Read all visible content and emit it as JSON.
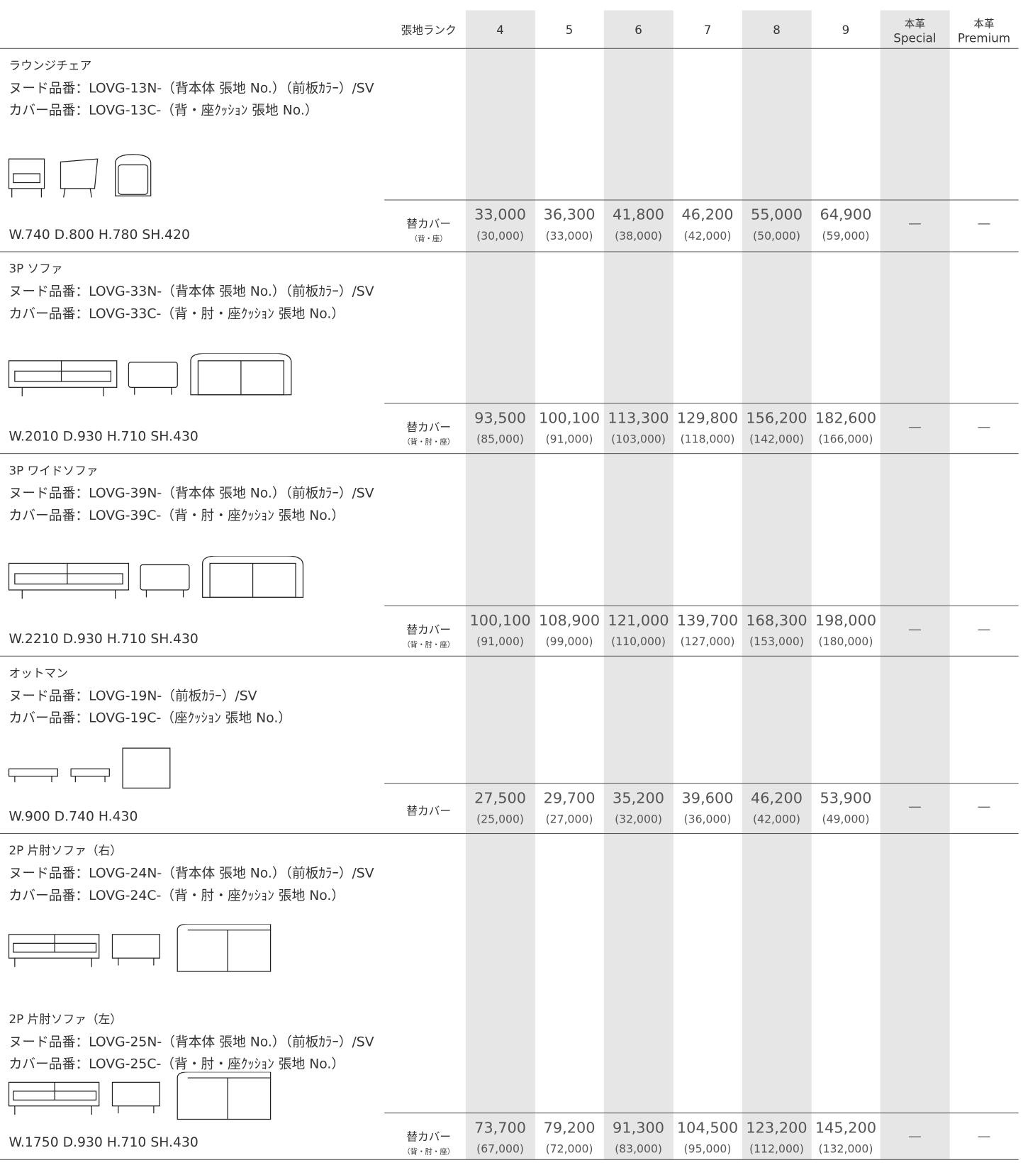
{
  "header": {
    "rank_label": "張地ランク",
    "columns": [
      [
        "4"
      ],
      [
        "5"
      ],
      [
        "6"
      ],
      [
        "7"
      ],
      [
        "8"
      ],
      [
        "9"
      ],
      [
        "本革",
        "Special"
      ],
      [
        "本革",
        "Premium"
      ]
    ]
  },
  "sections": [
    {
      "products": [
        {
          "name": "ラウンジチェア",
          "nude": "ヌード品番：LOVG-13N-（背本体 張地 No.）（前板ｶﾗｰ）/SV",
          "cover": "カバー品番：LOVG-13C-（背・座ｸｯｼｮﾝ 張地 No.）"
        }
      ],
      "dims": "W.740  D.800  H.780 SH.420",
      "cover_label": "替カバー",
      "cover_note": "（背・座）",
      "prices": [
        [
          "33,000",
          "(30,000)"
        ],
        [
          "36,300",
          "(33,000)"
        ],
        [
          "41,800",
          "(38,000)"
        ],
        [
          "46,200",
          "(42,000)"
        ],
        [
          "55,000",
          "(50,000)"
        ],
        [
          "64,900",
          "(59,000)"
        ]
      ],
      "leather": [
        "—",
        "—"
      ]
    },
    {
      "products": [
        {
          "name": "3P ソファ",
          "nude": "ヌード品番：LOVG-33N-（背本体 張地 No.）（前板ｶﾗｰ）/SV",
          "cover": "カバー品番：LOVG-33C-（背・肘・座ｸｯｼｮﾝ 張地 No.）"
        }
      ],
      "dims": "W.2010  D.930  H.710 SH.430",
      "cover_label": "替カバー",
      "cover_note": "（背・肘・座）",
      "prices": [
        [
          "93,500",
          "(85,000)"
        ],
        [
          "100,100",
          "(91,000)"
        ],
        [
          "113,300",
          "(103,000)"
        ],
        [
          "129,800",
          "(118,000)"
        ],
        [
          "156,200",
          "(142,000)"
        ],
        [
          "182,600",
          "(166,000)"
        ]
      ],
      "leather": [
        "—",
        "—"
      ]
    },
    {
      "products": [
        {
          "name": "3P ワイドソファ",
          "nude": "ヌード品番：LOVG-39N-（背本体 張地 No.）（前板ｶﾗｰ）/SV",
          "cover": "カバー品番：LOVG-39C-（背・肘・座ｸｯｼｮﾝ 張地 No.）"
        }
      ],
      "dims": "W.2210  D.930  H.710 SH.430",
      "cover_label": "替カバー",
      "cover_note": "（背・肘・座）",
      "prices": [
        [
          "100,100",
          "(91,000)"
        ],
        [
          "108,900",
          "(99,000)"
        ],
        [
          "121,000",
          "(110,000)"
        ],
        [
          "139,700",
          "(127,000)"
        ],
        [
          "168,300",
          "(153,000)"
        ],
        [
          "198,000",
          "(180,000)"
        ]
      ],
      "leather": [
        "—",
        "—"
      ]
    },
    {
      "products": [
        {
          "name": "オットマン",
          "nude": "ヌード品番：LOVG-19N-（前板ｶﾗｰ）/SV",
          "cover": "カバー品番：LOVG-19C-（座ｸｯｼｮﾝ 張地 No.）"
        }
      ],
      "dims": "W.900  D.740  H.430",
      "cover_label": "替カバー",
      "prices": [
        [
          "27,500",
          "(25,000)"
        ],
        [
          "29,700",
          "(27,000)"
        ],
        [
          "35,200",
          "(32,000)"
        ],
        [
          "39,600",
          "(36,000)"
        ],
        [
          "46,200",
          "(42,000)"
        ],
        [
          "53,900",
          "(49,000)"
        ]
      ],
      "leather": [
        "—",
        "—"
      ]
    },
    {
      "products": [
        {
          "name": "2P 片肘ソファ（右）",
          "nude": "ヌード品番：LOVG-24N-（背本体 張地 No.）（前板ｶﾗｰ）/SV",
          "cover": "カバー品番：LOVG-24C-（背・肘・座ｸｯｼｮﾝ 張地 No.）"
        },
        {
          "name": "2P 片肘ソファ（左）",
          "nude": "ヌード品番：LOVG-25N-（背本体 張地 No.）（前板ｶﾗｰ）/SV",
          "cover": "カバー品番：LOVG-25C-（背・肘・座ｸｯｼｮﾝ 張地 No.）"
        }
      ],
      "dims": "W.1750  D.930  H.710  SH.430",
      "cover_label": "替カバー",
      "cover_note": "（背・肘・座）",
      "prices": [
        [
          "73,700",
          "(67,000)"
        ],
        [
          "79,200",
          "(72,000)"
        ],
        [
          "91,300",
          "(83,000)"
        ],
        [
          "104,500",
          "(95,000)"
        ],
        [
          "123,200",
          "(112,000)"
        ],
        [
          "145,200",
          "(132,000)"
        ]
      ],
      "leather": [
        "—",
        "—"
      ]
    }
  ]
}
